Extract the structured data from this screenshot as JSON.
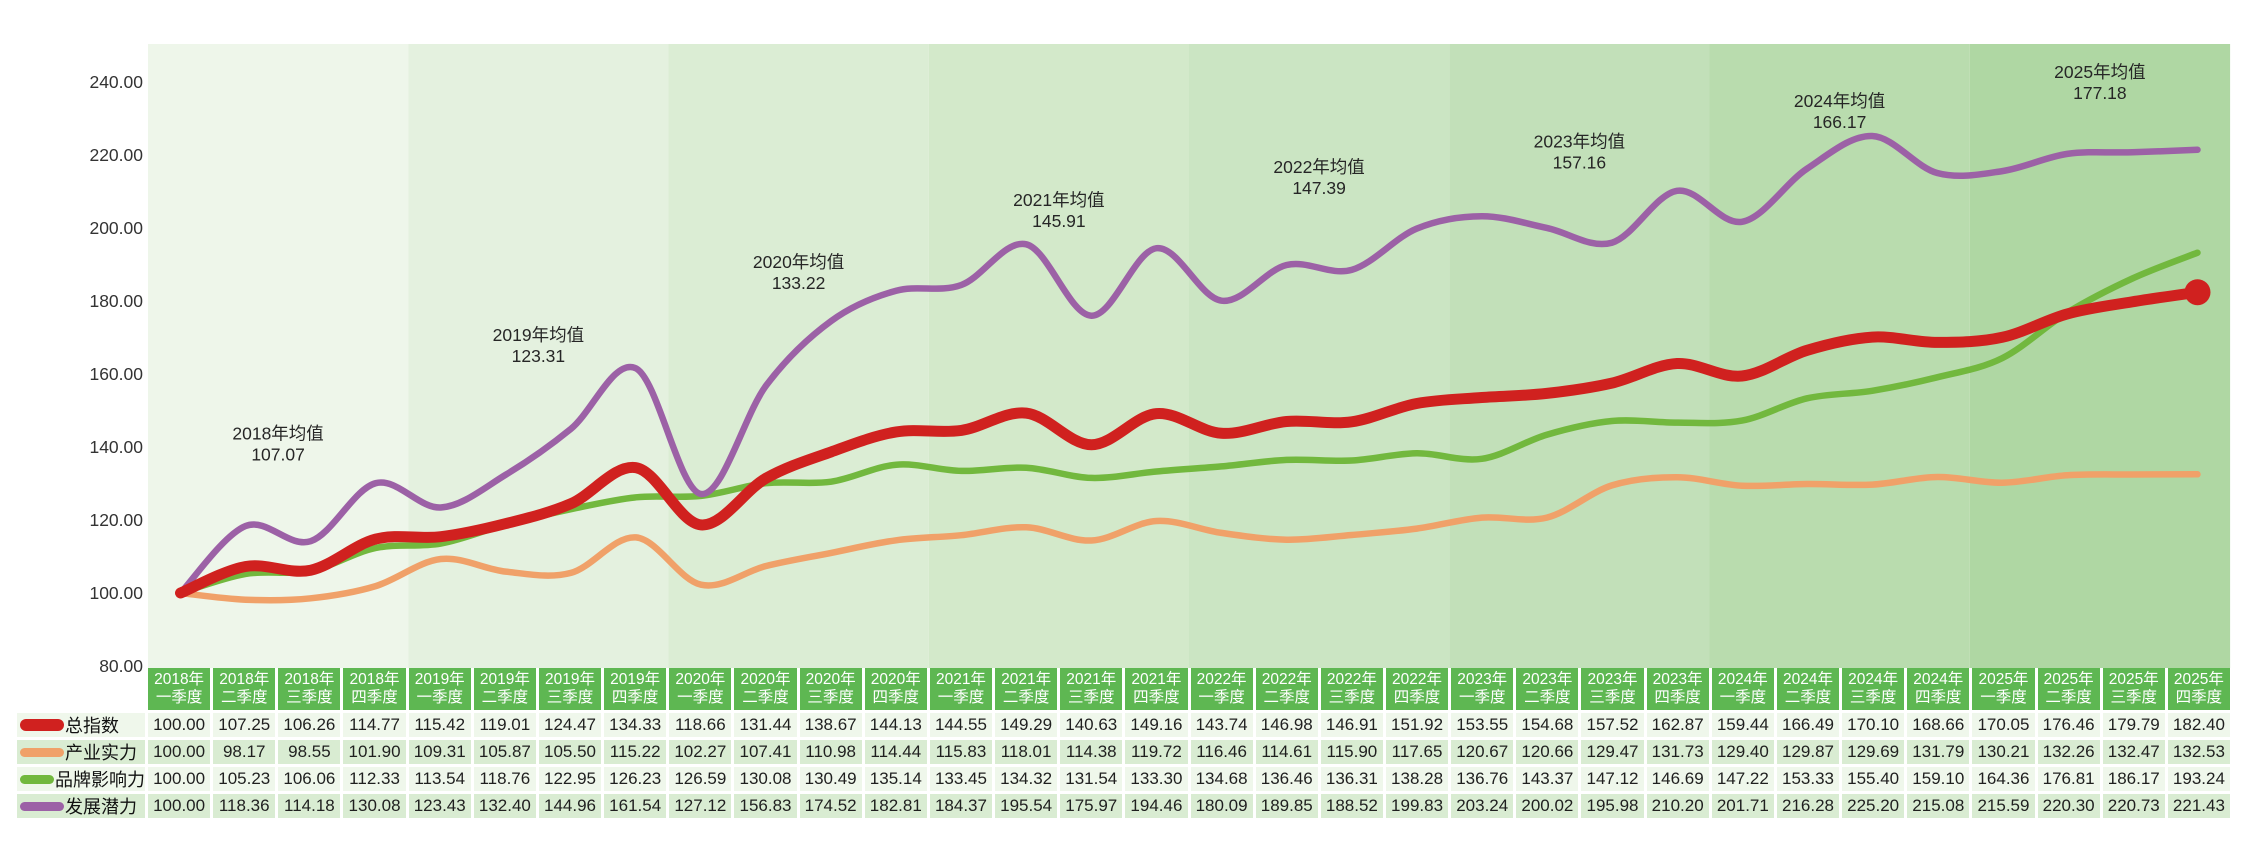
{
  "chart_data": {
    "type": "line",
    "title": "",
    "categories": [
      {
        "line1": "2018年",
        "line2": "一季度"
      },
      {
        "line1": "2018年",
        "line2": "二季度"
      },
      {
        "line1": "2018年",
        "line2": "三季度"
      },
      {
        "line1": "2018年",
        "line2": "四季度"
      },
      {
        "line1": "2019年",
        "line2": "一季度"
      },
      {
        "line1": "2019年",
        "line2": "二季度"
      },
      {
        "line1": "2019年",
        "line2": "三季度"
      },
      {
        "line1": "2019年",
        "line2": "四季度"
      },
      {
        "line1": "2020年",
        "line2": "一季度"
      },
      {
        "line1": "2020年",
        "line2": "二季度"
      },
      {
        "line1": "2020年",
        "line2": "三季度"
      },
      {
        "line1": "2020年",
        "line2": "四季度"
      },
      {
        "line1": "2021年",
        "line2": "一季度"
      },
      {
        "line1": "2021年",
        "line2": "二季度"
      },
      {
        "line1": "2021年",
        "line2": "三季度"
      },
      {
        "line1": "2021年",
        "line2": "四季度"
      },
      {
        "line1": "2022年",
        "line2": "一季度"
      },
      {
        "line1": "2022年",
        "line2": "二季度"
      },
      {
        "line1": "2022年",
        "line2": "三季度"
      },
      {
        "line1": "2022年",
        "line2": "四季度"
      },
      {
        "line1": "2023年",
        "line2": "一季度"
      },
      {
        "line1": "2023年",
        "line2": "二季度"
      },
      {
        "line1": "2023年",
        "line2": "三季度"
      },
      {
        "line1": "2023年",
        "line2": "四季度"
      },
      {
        "line1": "2024年",
        "line2": "一季度"
      },
      {
        "line1": "2024年",
        "line2": "二季度"
      },
      {
        "line1": "2024年",
        "line2": "三季度"
      },
      {
        "line1": "2024年",
        "line2": "四季度"
      },
      {
        "line1": "2025年",
        "line2": "一季度"
      },
      {
        "line1": "2025年",
        "line2": "二季度"
      },
      {
        "line1": "2025年",
        "line2": "三季度"
      },
      {
        "line1": "2025年",
        "line2": "四季度"
      }
    ],
    "series": [
      {
        "name": "总指数",
        "color": "#d0211f",
        "line_width": 11,
        "values": [
          100.0,
          107.25,
          106.26,
          114.77,
          115.42,
          119.01,
          124.47,
          134.33,
          118.66,
          131.44,
          138.67,
          144.13,
          144.55,
          149.29,
          140.63,
          149.16,
          143.74,
          146.98,
          146.91,
          151.92,
          153.55,
          154.68,
          157.52,
          162.87,
          159.44,
          166.49,
          170.1,
          168.66,
          170.05,
          176.46,
          179.79,
          182.4
        ]
      },
      {
        "name": "产业实力",
        "color": "#f0a169",
        "line_width": 6.5,
        "values": [
          100.0,
          98.17,
          98.55,
          101.9,
          109.31,
          105.87,
          105.5,
          115.22,
          102.27,
          107.41,
          110.98,
          114.44,
          115.83,
          118.01,
          114.38,
          119.72,
          116.46,
          114.61,
          115.9,
          117.65,
          120.67,
          120.66,
          129.47,
          131.73,
          129.4,
          129.87,
          129.69,
          131.79,
          130.21,
          132.26,
          132.47,
          132.53
        ]
      },
      {
        "name": "品牌影响力",
        "color": "#72b83e",
        "line_width": 6.5,
        "values": [
          100.0,
          105.23,
          106.06,
          112.33,
          113.54,
          118.76,
          122.95,
          126.23,
          126.59,
          130.08,
          130.49,
          135.14,
          133.45,
          134.32,
          131.54,
          133.3,
          134.68,
          136.46,
          136.31,
          138.28,
          136.76,
          143.37,
          147.12,
          146.69,
          147.22,
          153.33,
          155.4,
          159.1,
          164.36,
          176.81,
          186.17,
          193.24
        ]
      },
      {
        "name": "发展潜力",
        "color": "#9c61a6",
        "line_width": 6.5,
        "values": [
          100.0,
          118.36,
          114.18,
          130.08,
          123.43,
          132.4,
          144.96,
          161.54,
          127.12,
          156.83,
          174.52,
          182.81,
          184.37,
          195.54,
          175.97,
          194.46,
          180.09,
          189.85,
          188.52,
          199.83,
          203.24,
          200.02,
          195.98,
          210.2,
          201.71,
          216.28,
          225.2,
          215.08,
          215.59,
          220.3,
          220.73,
          221.43
        ]
      }
    ],
    "draw_order": [
      1,
      2,
      3,
      0
    ],
    "end_dot": {
      "series": 0,
      "radius": 13
    },
    "y_axis": {
      "min": 80,
      "max": 240,
      "step": 20,
      "ticks": [
        240,
        220,
        200,
        180,
        160,
        140,
        120,
        100,
        80
      ],
      "tick_labels": [
        "240.00",
        "220.00",
        "200.00",
        "180.00",
        "160.00",
        "140.00",
        "120.00",
        "100.00",
        "80.00"
      ]
    },
    "annotations": [
      {
        "label": "2018年均值",
        "value": "107.07",
        "band": 0,
        "y": 141
      },
      {
        "label": "2019年均值",
        "value": "123.31",
        "band": 1,
        "y": 168
      },
      {
        "label": "2020年均值",
        "value": "133.22",
        "band": 2,
        "y": 188
      },
      {
        "label": "2021年均值",
        "value": "145.91",
        "band": 3,
        "y": 205
      },
      {
        "label": "2022年均值",
        "value": "147.39",
        "band": 4,
        "y": 214
      },
      {
        "label": "2023年均值",
        "value": "157.16",
        "band": 5,
        "y": 221
      },
      {
        "label": "2024年均值",
        "value": "166.17",
        "band": 6,
        "y": 232
      },
      {
        "label": "2025年均值",
        "value": "177.18",
        "band": 7,
        "y": 240
      }
    ],
    "band_colors": [
      "#eef6ea",
      "#e4f1df",
      "#dbedd4",
      "#d3e9ca",
      "#cbe5c3",
      "#c2e0b9",
      "#b9dcae",
      "#afd7a3"
    ],
    "grid": false,
    "legend_position": "table-left"
  },
  "table_style": {
    "header_bg": "#5eb752",
    "header_text_color": "#ffffff",
    "row_bg_odd": "#eff7eb",
    "row_bg_even": "#d9ecd2",
    "value_text_color": "#1f1f1f"
  },
  "axis_text_color": "#333333",
  "annotation_text_color": "#262626"
}
